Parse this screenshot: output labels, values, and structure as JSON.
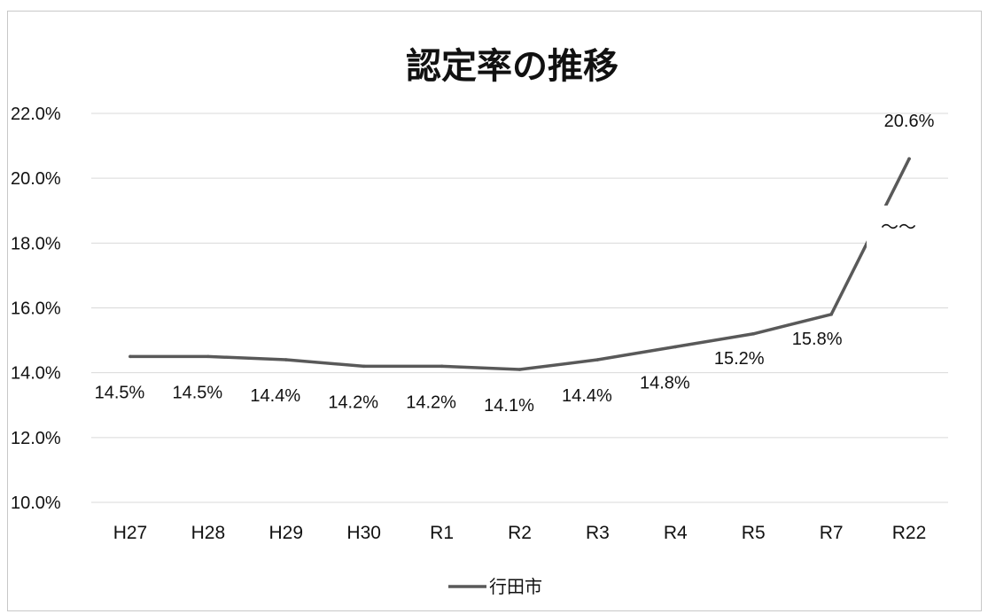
{
  "chart_data": {
    "type": "line",
    "title": "認定率の推移",
    "categories": [
      "H27",
      "H28",
      "H29",
      "H30",
      "R1",
      "R2",
      "R3",
      "R4",
      "R5",
      "R7",
      "R22"
    ],
    "series": [
      {
        "name": "行田市",
        "values": [
          14.5,
          14.5,
          14.4,
          14.2,
          14.2,
          14.1,
          14.4,
          14.8,
          15.2,
          15.8,
          20.6
        ],
        "labels": [
          "14.5%",
          "14.5%",
          "14.4%",
          "14.2%",
          "14.2%",
          "14.1%",
          "14.4%",
          "14.8%",
          "15.2%",
          "15.8%",
          "20.6%"
        ],
        "color": "#595959"
      }
    ],
    "ylim": [
      10,
      22
    ],
    "yticks": [
      10,
      12,
      14,
      16,
      18,
      20,
      22
    ],
    "ytick_labels": [
      "10.0%",
      "12.0%",
      "14.0%",
      "16.0%",
      "18.0%",
      "20.0%",
      "22.0%"
    ],
    "grid": true,
    "legend": "bottom",
    "break_marker": "〜〜"
  }
}
